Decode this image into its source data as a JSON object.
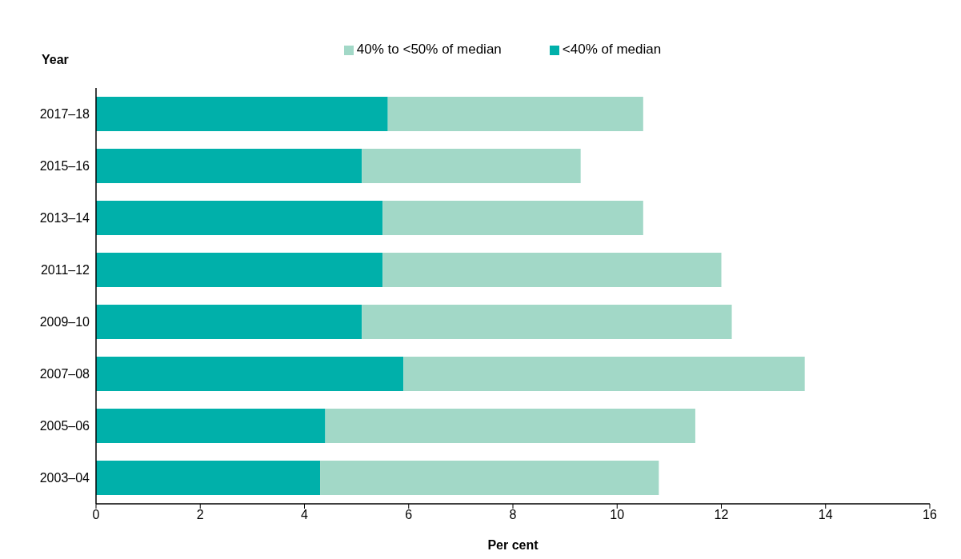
{
  "chart_data": {
    "type": "bar",
    "orientation": "horizontal",
    "stacked": true,
    "ylabel": "Year",
    "xlabel": "Per cent",
    "categories": [
      "2017–18",
      "2015–16",
      "2013–14",
      "2011–12",
      "2009–10",
      "2007–08",
      "2005–06",
      "2003–04"
    ],
    "series": [
      {
        "name": "<40% of median",
        "color": "#00b0aa",
        "values": [
          5.6,
          5.1,
          5.5,
          5.5,
          5.1,
          5.9,
          4.4,
          4.3
        ]
      },
      {
        "name": "40% to <50% of median",
        "color": "#a2d8c7",
        "values": [
          4.9,
          4.2,
          5.0,
          6.5,
          7.1,
          7.7,
          7.1,
          6.5
        ]
      }
    ],
    "xlim": [
      0,
      16
    ],
    "xticks": [
      0,
      2,
      4,
      6,
      8,
      10,
      12,
      14,
      16
    ],
    "grid": false,
    "legend": "top"
  }
}
